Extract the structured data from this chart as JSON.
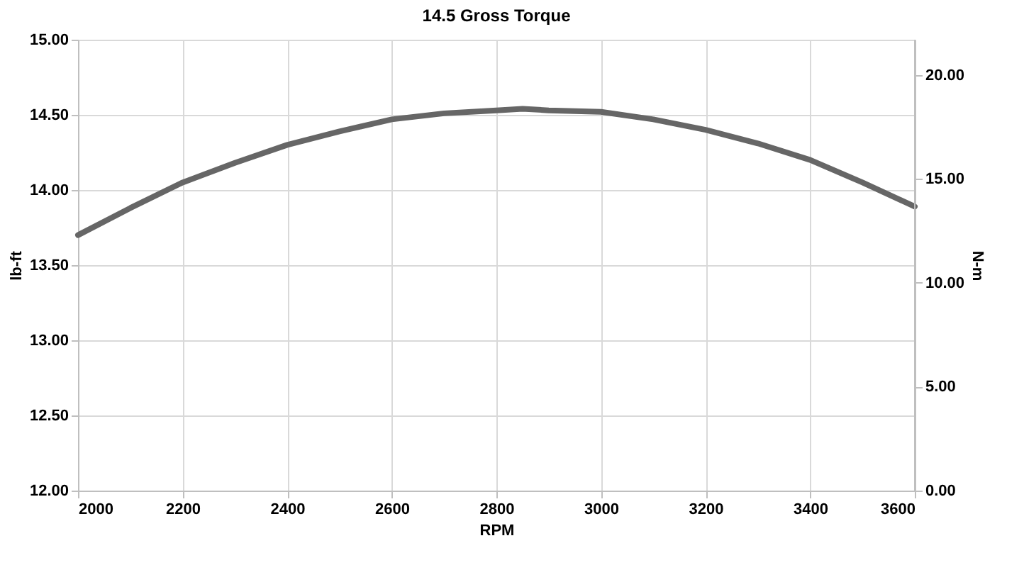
{
  "chart_data": {
    "type": "line",
    "title": "14.5 Gross Torque",
    "xlabel": "RPM",
    "ylabel": "lb-ft",
    "y2label": "N-m",
    "x": [
      2000,
      2100,
      2200,
      2300,
      2400,
      2500,
      2600,
      2700,
      2800,
      2850,
      2900,
      3000,
      3100,
      3200,
      3300,
      3400,
      3500,
      3600
    ],
    "series": [
      {
        "color": "#666666",
        "values": [
          13.7,
          13.88,
          14.05,
          14.18,
          14.3,
          14.39,
          14.47,
          14.51,
          14.53,
          14.54,
          14.53,
          14.52,
          14.47,
          14.4,
          14.31,
          14.2,
          14.05,
          13.89
        ]
      }
    ],
    "xlim": [
      2000,
      3600
    ],
    "xticks": [
      2000,
      2200,
      2400,
      2600,
      2800,
      3000,
      3200,
      3400,
      3600
    ],
    "ylim": [
      12,
      15
    ],
    "yticks": [
      {
        "value": 12,
        "label": "12.00"
      },
      {
        "value": 12.5,
        "label": "12.50"
      },
      {
        "value": 13,
        "label": "13.00"
      },
      {
        "value": 13.5,
        "label": "13.50"
      },
      {
        "value": 14,
        "label": "14.00"
      },
      {
        "value": 14.5,
        "label": "14.50"
      },
      {
        "value": 15,
        "label": "15.00"
      }
    ],
    "y2lim": [
      0,
      21.7
    ],
    "y2ticks": [
      {
        "value": 0,
        "label": "0.00"
      },
      {
        "value": 5,
        "label": "5.00"
      },
      {
        "value": 10,
        "label": "10.00"
      },
      {
        "value": 15,
        "label": "15.00"
      },
      {
        "value": 20,
        "label": "20.00"
      }
    ],
    "grid": true,
    "marker": "none",
    "line_style": "solid"
  }
}
